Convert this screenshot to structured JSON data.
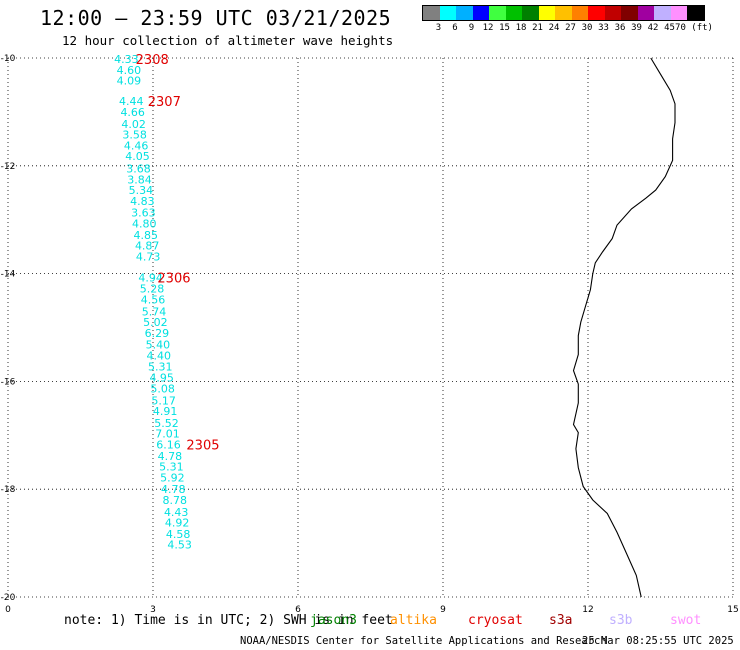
{
  "title": "12:00 – 23:59 UTC 03/21/2025",
  "subtitle": "12 hour collection of altimeter wave heights",
  "legend": {
    "colors": [
      "#808080",
      "#00ffff",
      "#00b0ff",
      "#0000ff",
      "#40ff40",
      "#00c000",
      "#008000",
      "#ffff00",
      "#ffc000",
      "#ff8000",
      "#ff0000",
      "#c00000",
      "#800000",
      "#a000a0",
      "#c0b0ff",
      "#ff90ff",
      "#000000"
    ],
    "labels": [
      "3",
      "6",
      "9",
      "12",
      "15",
      "18",
      "21",
      "24",
      "27",
      "30",
      "33",
      "36",
      "39",
      "42",
      "45",
      "70 (ft)"
    ]
  },
  "map": {
    "x_ticks": [
      "0",
      "3",
      "6",
      "9",
      "12",
      "15"
    ],
    "y_ticks": [
      "-10",
      "-12",
      "-14",
      "-16",
      "-18",
      "-20"
    ],
    "track_color": "#00e0e0",
    "pass_color": "#e00000",
    "track": [
      {
        "lon": 2.45,
        "lat": -10.02,
        "label": "4.33"
      },
      {
        "lon": 2.5,
        "lat": -10.22,
        "label": "4.60"
      },
      {
        "lon": 2.5,
        "lat": -10.42,
        "label": "4.09"
      },
      {
        "lon": 2.55,
        "lat": -10.8,
        "label": "4.44"
      },
      {
        "lon": 2.58,
        "lat": -11.0,
        "label": "4.66"
      },
      {
        "lon": 2.6,
        "lat": -11.22,
        "label": "4.02"
      },
      {
        "lon": 2.62,
        "lat": -11.42,
        "label": "3.58"
      },
      {
        "lon": 2.65,
        "lat": -11.62,
        "label": "4.46"
      },
      {
        "lon": 2.68,
        "lat": -11.82,
        "label": "4.05"
      },
      {
        "lon": 2.7,
        "lat": -12.05,
        "label": "3.68"
      },
      {
        "lon": 2.72,
        "lat": -12.25,
        "label": "3.84"
      },
      {
        "lon": 2.75,
        "lat": -12.45,
        "label": "5.34"
      },
      {
        "lon": 2.78,
        "lat": -12.65,
        "label": "4.83"
      },
      {
        "lon": 2.8,
        "lat": -12.87,
        "label": "3.63"
      },
      {
        "lon": 2.82,
        "lat": -13.07,
        "label": "4.80"
      },
      {
        "lon": 2.85,
        "lat": -13.28,
        "label": "4.85"
      },
      {
        "lon": 2.88,
        "lat": -13.48,
        "label": "4.87"
      },
      {
        "lon": 2.9,
        "lat": -13.68,
        "label": "4.73"
      },
      {
        "lon": 2.95,
        "lat": -14.07,
        "label": "4.94"
      },
      {
        "lon": 2.98,
        "lat": -14.28,
        "label": "5.28"
      },
      {
        "lon": 3.0,
        "lat": -14.48,
        "label": "4.56"
      },
      {
        "lon": 3.02,
        "lat": -14.7,
        "label": "5.74"
      },
      {
        "lon": 3.05,
        "lat": -14.9,
        "label": "5.02"
      },
      {
        "lon": 3.08,
        "lat": -15.1,
        "label": "6.29"
      },
      {
        "lon": 3.1,
        "lat": -15.32,
        "label": "5.40"
      },
      {
        "lon": 3.12,
        "lat": -15.52,
        "label": "4.40"
      },
      {
        "lon": 3.15,
        "lat": -15.72,
        "label": "5.31"
      },
      {
        "lon": 3.18,
        "lat": -15.93,
        "label": "4.95"
      },
      {
        "lon": 3.2,
        "lat": -16.13,
        "label": "5.08"
      },
      {
        "lon": 3.22,
        "lat": -16.35,
        "label": "5.17"
      },
      {
        "lon": 3.25,
        "lat": -16.55,
        "label": "4.91"
      },
      {
        "lon": 3.28,
        "lat": -16.77,
        "label": "5.52"
      },
      {
        "lon": 3.3,
        "lat": -16.97,
        "label": "7.01"
      },
      {
        "lon": 3.32,
        "lat": -17.17,
        "label": "6.16"
      },
      {
        "lon": 3.35,
        "lat": -17.38,
        "label": "4.78"
      },
      {
        "lon": 3.38,
        "lat": -17.58,
        "label": "5.31"
      },
      {
        "lon": 3.4,
        "lat": -17.78,
        "label": "5.92"
      },
      {
        "lon": 3.42,
        "lat": -18.0,
        "label": "4.78"
      },
      {
        "lon": 3.45,
        "lat": -18.2,
        "label": "8.78"
      },
      {
        "lon": 3.48,
        "lat": -18.42,
        "label": "4.43"
      },
      {
        "lon": 3.5,
        "lat": -18.62,
        "label": "4.92"
      },
      {
        "lon": 3.52,
        "lat": -18.83,
        "label": "4.58"
      },
      {
        "lon": 3.55,
        "lat": -19.03,
        "label": "4.53"
      }
    ],
    "passes": [
      {
        "lon": 2.6,
        "lat": -10.02,
        "label": "2308"
      },
      {
        "lon": 2.85,
        "lat": -10.8,
        "label": "2307"
      },
      {
        "lon": 3.05,
        "lat": -14.07,
        "label": "2306"
      },
      {
        "lon": 3.65,
        "lat": -17.17,
        "label": "2305"
      }
    ],
    "coast": [
      [
        13.3,
        -10.0
      ],
      [
        13.5,
        -10.3
      ],
      [
        13.7,
        -10.6
      ],
      [
        13.8,
        -10.85
      ],
      [
        13.8,
        -11.2
      ],
      [
        13.75,
        -11.5
      ],
      [
        13.75,
        -11.9
      ],
      [
        13.6,
        -12.2
      ],
      [
        13.4,
        -12.45
      ],
      [
        13.2,
        -12.6
      ],
      [
        12.9,
        -12.8
      ],
      [
        12.6,
        -13.1
      ],
      [
        12.5,
        -13.35
      ],
      [
        12.3,
        -13.6
      ],
      [
        12.15,
        -13.8
      ],
      [
        12.1,
        -14.0
      ],
      [
        12.05,
        -14.3
      ],
      [
        11.95,
        -14.6
      ],
      [
        11.85,
        -14.9
      ],
      [
        11.8,
        -15.15
      ],
      [
        11.8,
        -15.5
      ],
      [
        11.7,
        -15.8
      ],
      [
        11.8,
        -16.05
      ],
      [
        11.8,
        -16.4
      ],
      [
        11.75,
        -16.6
      ],
      [
        11.7,
        -16.8
      ],
      [
        11.8,
        -16.95
      ],
      [
        11.75,
        -17.25
      ],
      [
        11.8,
        -17.6
      ],
      [
        11.9,
        -17.95
      ],
      [
        12.1,
        -18.2
      ],
      [
        12.4,
        -18.45
      ],
      [
        12.6,
        -18.8
      ],
      [
        12.8,
        -19.2
      ],
      [
        13.0,
        -19.6
      ],
      [
        13.1,
        -20.0
      ]
    ]
  },
  "footer": {
    "note": "note: 1) Time is in UTC; 2) SWH is in feet",
    "satellites": [
      {
        "name": "jason3",
        "color": "#008000"
      },
      {
        "name": "altika",
        "color": "#ff9000"
      },
      {
        "name": "cryosat",
        "color": "#e00000"
      },
      {
        "name": "s3a",
        "color": "#a00000"
      },
      {
        "name": "s3b",
        "color": "#c0b0ff"
      },
      {
        "name": "swot",
        "color": "#ff90ff"
      }
    ],
    "credit": "NOAA/NESDIS Center for Satellite Applications and Research",
    "timestamp": "25 Mar 08:25:55 UTC 2025"
  }
}
